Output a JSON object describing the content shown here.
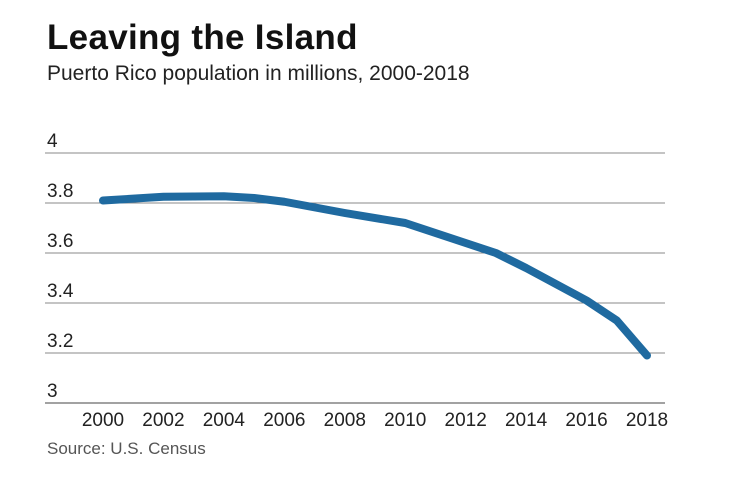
{
  "chart_data": {
    "type": "line",
    "title": "Leaving the Island",
    "subtitle": "Puerto Rico population in millions, 2000-2018",
    "source": "Source: U.S. Census",
    "xlabel": "",
    "ylabel": "",
    "xlim": [
      2000,
      2018
    ],
    "ylim": [
      3,
      4
    ],
    "x_ticks": [
      "2000",
      "2002",
      "2004",
      "2006",
      "2008",
      "2010",
      "2012",
      "2014",
      "2016",
      "2018"
    ],
    "y_ticks": [
      "3",
      "3.2",
      "3.4",
      "3.6",
      "3.8",
      "4"
    ],
    "grid": "horizontal",
    "line_color": "#1f6aa0",
    "series": [
      {
        "x": [
          2000,
          2002,
          2004,
          2005,
          2006,
          2008,
          2010,
          2012,
          2013,
          2014,
          2016,
          2017,
          2018
        ],
        "values": [
          3.81,
          3.825,
          3.827,
          3.82,
          3.805,
          3.76,
          3.72,
          3.64,
          3.6,
          3.54,
          3.41,
          3.33,
          3.19
        ]
      }
    ]
  }
}
